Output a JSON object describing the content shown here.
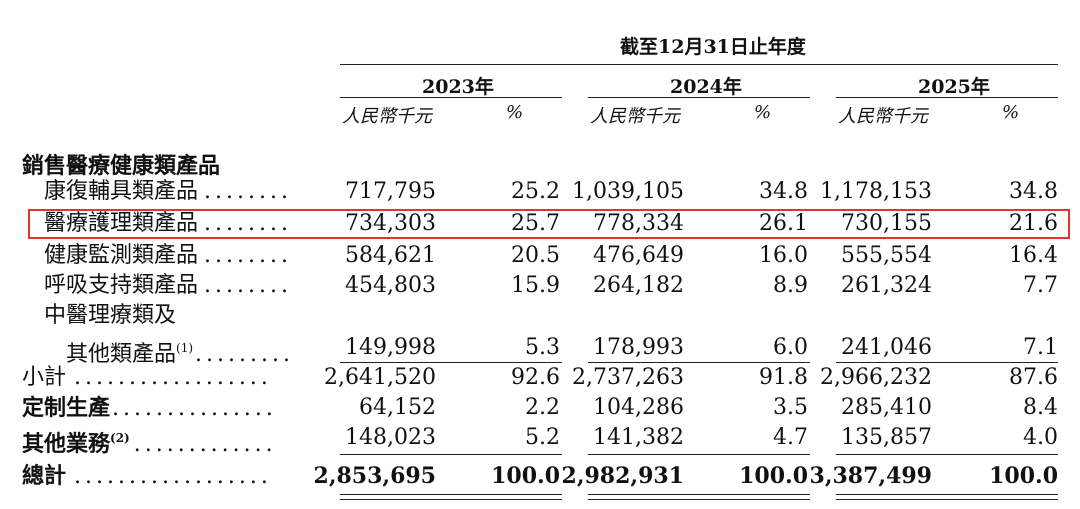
{
  "header": {
    "period": "截至12月31日止年度",
    "years": [
      "2023年",
      "2024年",
      "2025年"
    ],
    "unit_rmb": "人民幣千元",
    "unit_pct": "%"
  },
  "section_title": "銷售醫療健康類產品",
  "rows": [
    {
      "label": "康復輔具類產品",
      "dots": "........",
      "v2023": "717,795",
      "p2023": "25.2",
      "v2024": "1,039,105",
      "p2024": "34.8",
      "v2025": "1,178,153",
      "p2025": "34.8"
    },
    {
      "label": "醫療護理類產品",
      "dots": "........",
      "v2023": "734,303",
      "p2023": "25.7",
      "v2024": "778,334",
      "p2024": "26.1",
      "v2025": "730,155",
      "p2025": "21.6"
    },
    {
      "label": "健康監測類產品",
      "dots": "........",
      "v2023": "584,621",
      "p2023": "20.5",
      "v2024": "476,649",
      "p2024": "16.0",
      "v2025": "555,554",
      "p2025": "16.4"
    },
    {
      "label": "呼吸支持類產品",
      "dots": "........",
      "v2023": "454,803",
      "p2023": "15.9",
      "v2024": "264,182",
      "p2024": "8.9",
      "v2025": "261,324",
      "p2025": "7.7"
    },
    {
      "label": "中醫理療類及"
    },
    {
      "label": "其他類產品",
      "note": "(1)",
      "dots": ".........",
      "v2023": "149,998",
      "p2023": "5.3",
      "v2024": "178,993",
      "p2024": "6.0",
      "v2025": "241,046",
      "p2025": "7.1"
    },
    {
      "label": "小計",
      "dots": "..................",
      "v2023": "2,641,520",
      "p2023": "92.6",
      "v2024": "2,737,263",
      "p2024": "91.8",
      "v2025": "2,966,232",
      "p2025": "87.6"
    },
    {
      "label": "定制生產",
      "dots": "...............",
      "v2023": "64,152",
      "p2023": "2.2",
      "v2024": "104,286",
      "p2024": "3.5",
      "v2025": "285,410",
      "p2025": "8.4"
    },
    {
      "label": "其他業務",
      "note": "(2)",
      "dots": ".............",
      "v2023": "148,023",
      "p2023": "5.2",
      "v2024": "141,382",
      "p2024": "4.7",
      "v2025": "135,857",
      "p2025": "4.0"
    },
    {
      "label": "總計",
      "dots": "..................",
      "v2023": "2,853,695",
      "p2023": "100.0",
      "v2024": "2,982,931",
      "p2024": "100.0",
      "v2025": "3,387,499",
      "p2025": "100.0"
    }
  ]
}
